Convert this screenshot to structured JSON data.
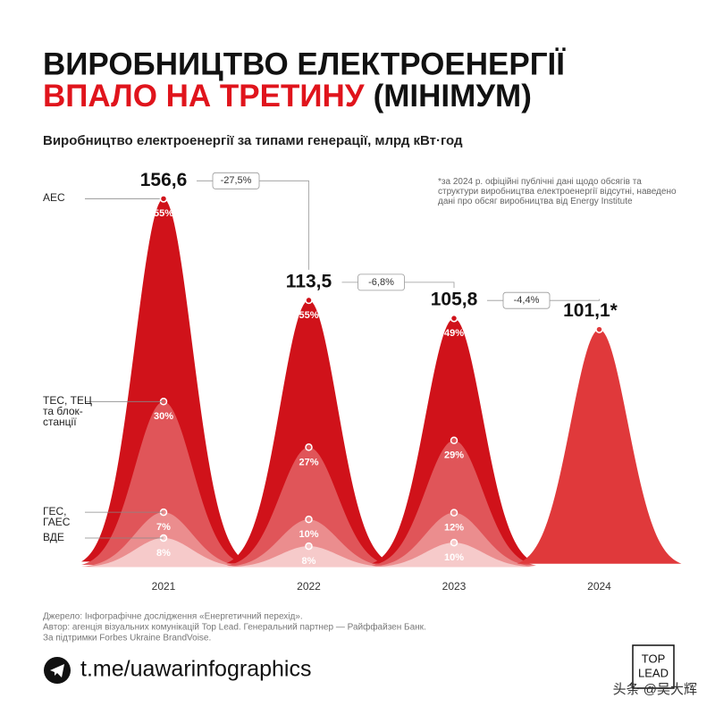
{
  "chart_data": {
    "type": "bell",
    "title": "ВИРОБНИЦТВО ЕЛЕКТРОЕНЕРГІЇ",
    "title_highlight": "ВПАЛО НА ТРЕТИНУ",
    "title_suffix": "(МІНІМУМ)",
    "subtitle": "Виробництво електроенергії за типами генерації, млрд кВт·год",
    "note": "*за 2024 р. офіційні публічні дані щодо обсягів та структури виробництва електроенергії відсутні, наведено дані про обсяг виробництва від Energy Institute",
    "categories": [
      "2021",
      "2022",
      "2023",
      "2024"
    ],
    "totals": {
      "values": [
        156.6,
        113.5,
        105.8,
        101.1
      ],
      "value_labels": [
        "156,6",
        "113,5",
        "105,8",
        "101,1*"
      ],
      "color": "#e0393b"
    },
    "changes": {
      "values": [
        -27.5,
        -6.8,
        -4.4
      ],
      "value_labels": [
        "-27,5%",
        "-6,8%",
        "-4,4%"
      ]
    },
    "series": [
      {
        "name": "АЕС",
        "color": "#d0121a",
        "values": [
          55,
          55,
          49,
          null
        ],
        "value_labels": [
          "55%",
          "55%",
          "49%",
          null
        ]
      },
      {
        "name": "ТЕС, ТЕЦ та блок-станції",
        "color": "#e05559",
        "values": [
          30,
          27,
          29,
          null
        ],
        "value_labels": [
          "30%",
          "27%",
          "29%",
          null
        ]
      },
      {
        "name": "ГЕС, ГАЕС",
        "color": "#eb8d8e",
        "values": [
          7,
          10,
          12,
          null
        ],
        "value_labels": [
          "7%",
          "10%",
          "12%",
          null
        ]
      },
      {
        "name": "ВДЕ",
        "color": "#f6caca",
        "values": [
          8,
          8,
          10,
          null
        ],
        "value_labels": [
          "8%",
          "8%",
          "10%",
          null
        ]
      }
    ],
    "ylim": [
      0,
      170
    ]
  },
  "footer": {
    "source": [
      "Джерело: Інфографічне дослідження «Енергетичний перехід».",
      "Автор: агенція візуальних комунікацій Top Lead. Генеральний партнер — Райффайзен Банк.",
      "За підтримки Forbes Ukraine BrandVoise."
    ],
    "link": "t.me/uawarinfographics",
    "logo_top": "TOP",
    "logo_bottom": "LEAD",
    "watermark": "头条 @吴大辉"
  }
}
